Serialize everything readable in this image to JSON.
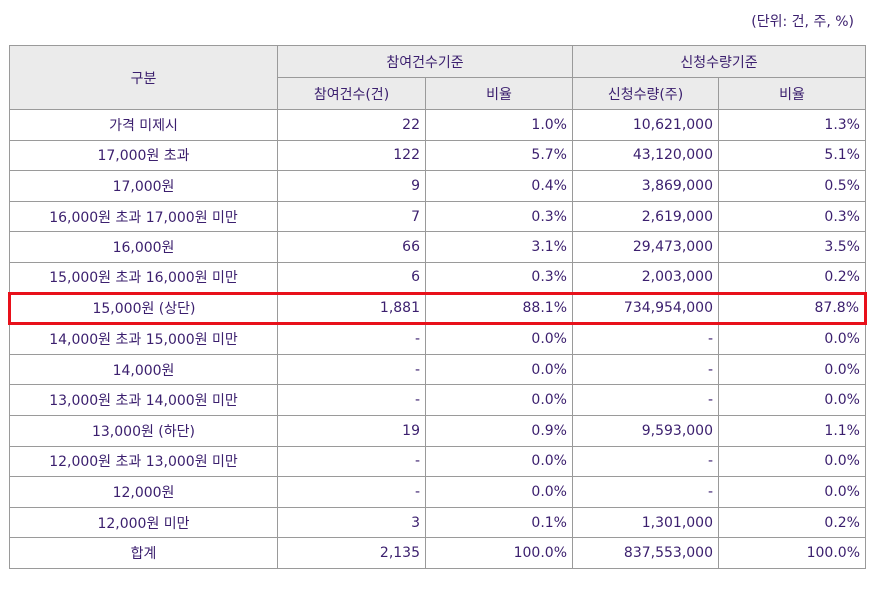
{
  "unit_note": "(단위: 건, 주, %)",
  "header": {
    "category": "구분",
    "group1": "참여건수기준",
    "group2": "신청수량기준",
    "col_count": "참여건수(건)",
    "col_ratio1": "비율",
    "col_qty": "신청수량(주)",
    "col_ratio2": "비율"
  },
  "rows": [
    {
      "label": "가격 미제시",
      "count": "22",
      "ratio1": "1.0%",
      "qty": "10,621,000",
      "ratio2": "1.3%"
    },
    {
      "label": "17,000원 초과",
      "count": "122",
      "ratio1": "5.7%",
      "qty": "43,120,000",
      "ratio2": "5.1%"
    },
    {
      "label": "17,000원",
      "count": "9",
      "ratio1": "0.4%",
      "qty": "3,869,000",
      "ratio2": "0.5%"
    },
    {
      "label": "16,000원 초과 17,000원 미만",
      "count": "7",
      "ratio1": "0.3%",
      "qty": "2,619,000",
      "ratio2": "0.3%"
    },
    {
      "label": "16,000원",
      "count": "66",
      "ratio1": "3.1%",
      "qty": "29,473,000",
      "ratio2": "3.5%"
    },
    {
      "label": "15,000원 초과 16,000원 미만",
      "count": "6",
      "ratio1": "0.3%",
      "qty": "2,003,000",
      "ratio2": "0.2%"
    },
    {
      "label": "15,000원 (상단)",
      "count": "1,881",
      "ratio1": "88.1%",
      "qty": "734,954,000",
      "ratio2": "87.8%"
    },
    {
      "label": "14,000원 초과 15,000원 미만",
      "count": "-",
      "ratio1": "0.0%",
      "qty": "-",
      "ratio2": "0.0%"
    },
    {
      "label": "14,000원",
      "count": "-",
      "ratio1": "0.0%",
      "qty": "-",
      "ratio2": "0.0%"
    },
    {
      "label": "13,000원 초과 14,000원 미만",
      "count": "-",
      "ratio1": "0.0%",
      "qty": "-",
      "ratio2": "0.0%"
    },
    {
      "label": "13,000원 (하단)",
      "count": "19",
      "ratio1": "0.9%",
      "qty": "9,593,000",
      "ratio2": "1.1%"
    },
    {
      "label": "12,000원 초과 13,000원 미만",
      "count": "-",
      "ratio1": "0.0%",
      "qty": "-",
      "ratio2": "0.0%"
    },
    {
      "label": "12,000원",
      "count": "-",
      "ratio1": "0.0%",
      "qty": "-",
      "ratio2": "0.0%"
    },
    {
      "label": "12,000원 미만",
      "count": "3",
      "ratio1": "0.1%",
      "qty": "1,301,000",
      "ratio2": "0.2%"
    },
    {
      "label": "합계",
      "count": "2,135",
      "ratio1": "100.0%",
      "qty": "837,553,000",
      "ratio2": "100.0%"
    }
  ],
  "highlight_color": "#e8101a"
}
